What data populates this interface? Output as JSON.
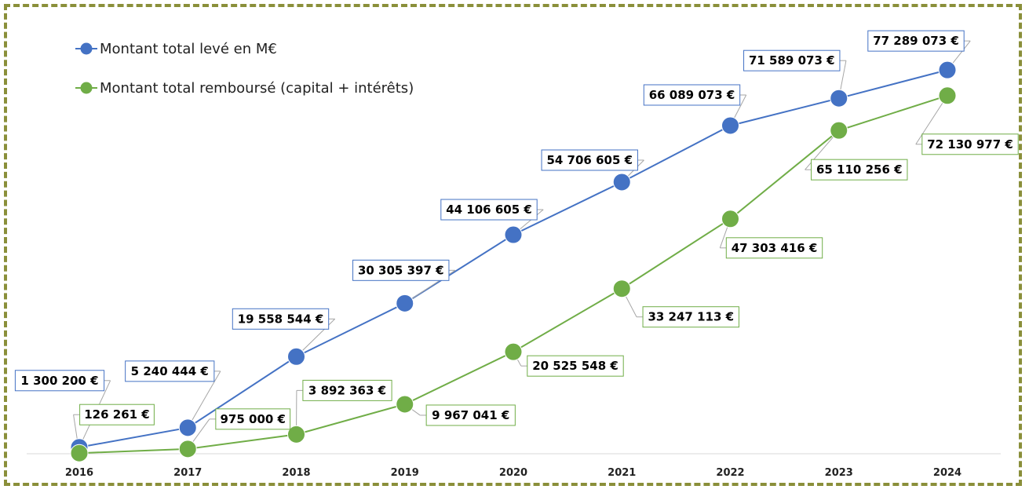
{
  "chart_data": {
    "type": "line",
    "title": "",
    "xlabel": "",
    "ylabel": "",
    "ylim": [
      0,
      80000000
    ],
    "grid": false,
    "legend_position": "top-left",
    "categories": [
      "2016",
      "2017",
      "2018",
      "2019",
      "2020",
      "2021",
      "2022",
      "2023",
      "2024"
    ],
    "series": [
      {
        "name": "Montant total levé en M€",
        "color": "#4472c4",
        "values": [
          1300200,
          5240444,
          19558544,
          30305397,
          44106605,
          54706605,
          66089073,
          71589073,
          77289073
        ],
        "labels": [
          "1 300 200 €",
          "5 240 444 €",
          "19 558 544 €",
          "30 305 397 €",
          "44 106 605 €",
          "54 706 605 €",
          "66 089 073 €",
          "71 589 073 €",
          "77 289 073 €"
        ]
      },
      {
        "name": "Montant total remboursé (capital + intérêts)",
        "color": "#70ad47",
        "values": [
          126261,
          975000,
          3892363,
          9967041,
          20525548,
          33247113,
          47303416,
          65110256,
          72130977
        ],
        "labels": [
          "126 261 €",
          "975 000 €",
          "3 892 363 €",
          "9 967 041 €",
          "20 525 548 €",
          "33 247 113 €",
          "47 303 416 €",
          "65 110 256 €",
          "72 130 977 €"
        ]
      }
    ]
  }
}
